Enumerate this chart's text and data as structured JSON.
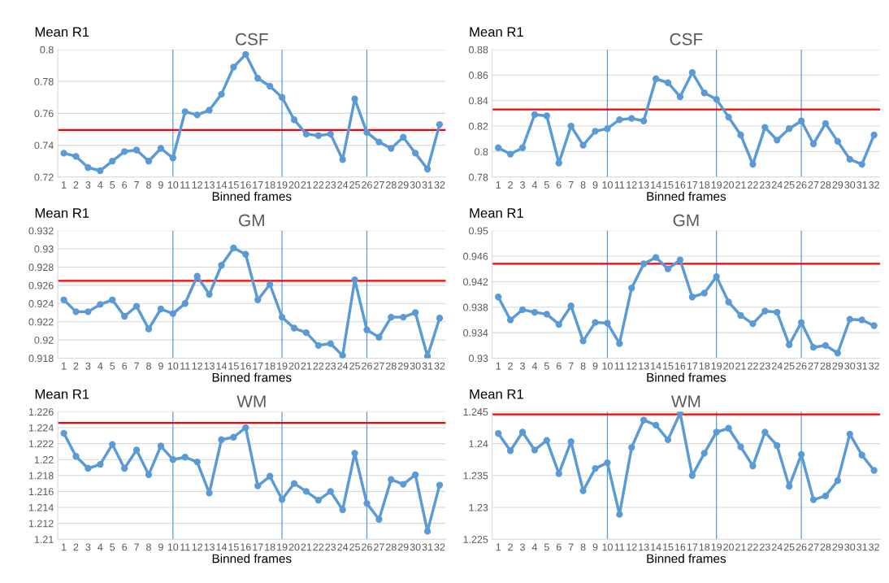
{
  "chart_data": [
    {
      "type": "line",
      "title": "CSF",
      "ylabel": "Mean R1",
      "xlabel": "Binned frames",
      "categories": [
        "1",
        "2",
        "3",
        "4",
        "5",
        "6",
        "7",
        "8",
        "9",
        "10",
        "11",
        "12",
        "13",
        "14",
        "15",
        "16",
        "17",
        "18",
        "19",
        "20",
        "21",
        "22",
        "23",
        "24",
        "25",
        "26",
        "27",
        "28",
        "29",
        "30",
        "31",
        "32"
      ],
      "series": [
        {
          "color": "#5b9bd5",
          "values": [
            0.735,
            0.733,
            0.726,
            0.724,
            0.73,
            0.736,
            0.737,
            0.73,
            0.738,
            0.732,
            0.761,
            0.759,
            0.762,
            0.772,
            0.789,
            0.797,
            0.782,
            0.777,
            0.77,
            0.756,
            0.747,
            0.746,
            0.747,
            0.731,
            0.769,
            0.748,
            0.742,
            0.738,
            0.745,
            0.735,
            0.725,
            0.753
          ]
        }
      ],
      "ylim": [
        0.72,
        0.8
      ],
      "yticks": [
        0.72,
        0.74,
        0.76,
        0.78,
        0.8
      ],
      "grid": "y",
      "marker": "circle",
      "line_style": "solid",
      "ref_lines": [
        {
          "axis": "y",
          "value": 0.7495,
          "color": "#ff0000"
        },
        {
          "axis": "x",
          "value": "10",
          "color": "#5b9bd5"
        },
        {
          "axis": "x",
          "value": "19",
          "color": "#5b9bd5"
        },
        {
          "axis": "x",
          "value": "26",
          "color": "#5b9bd5"
        }
      ]
    },
    {
      "type": "line",
      "title": "CSF",
      "ylabel": "Mean R1",
      "xlabel": "Binned frames",
      "categories": [
        "1",
        "2",
        "3",
        "4",
        "5",
        "6",
        "7",
        "8",
        "9",
        "10",
        "11",
        "12",
        "13",
        "14",
        "15",
        "16",
        "17",
        "18",
        "19",
        "20",
        "21",
        "22",
        "23",
        "24",
        "25",
        "26",
        "27",
        "28",
        "29",
        "30",
        "31",
        "32"
      ],
      "series": [
        {
          "color": "#5b9bd5",
          "values": [
            0.803,
            0.798,
            0.803,
            0.829,
            0.828,
            0.791,
            0.82,
            0.805,
            0.816,
            0.818,
            0.825,
            0.826,
            0.824,
            0.857,
            0.854,
            0.843,
            0.862,
            0.846,
            0.841,
            0.827,
            0.813,
            0.79,
            0.819,
            0.809,
            0.818,
            0.824,
            0.806,
            0.822,
            0.808,
            0.794,
            0.79,
            0.813
          ]
        }
      ],
      "ylim": [
        0.78,
        0.88
      ],
      "yticks": [
        0.78,
        0.8,
        0.82,
        0.84,
        0.86,
        0.88
      ],
      "grid": "y",
      "marker": "circle",
      "line_style": "solid",
      "ref_lines": [
        {
          "axis": "y",
          "value": 0.833,
          "color": "#ff0000"
        },
        {
          "axis": "x",
          "value": "10",
          "color": "#5b9bd5"
        },
        {
          "axis": "x",
          "value": "19",
          "color": "#5b9bd5"
        },
        {
          "axis": "x",
          "value": "26",
          "color": "#5b9bd5"
        }
      ]
    },
    {
      "type": "line",
      "title": "GM",
      "ylabel": "Mean R1",
      "xlabel": "Binned frames",
      "categories": [
        "1",
        "2",
        "3",
        "4",
        "5",
        "6",
        "7",
        "8",
        "9",
        "10",
        "11",
        "12",
        "13",
        "14",
        "15",
        "16",
        "17",
        "18",
        "19",
        "20",
        "21",
        "22",
        "23",
        "24",
        "25",
        "26",
        "27",
        "28",
        "29",
        "30",
        "31",
        "32"
      ],
      "series": [
        {
          "color": "#5b9bd5",
          "values": [
            0.9244,
            0.9231,
            0.9231,
            0.9239,
            0.9244,
            0.9226,
            0.9237,
            0.9212,
            0.9234,
            0.9229,
            0.924,
            0.927,
            0.925,
            0.9282,
            0.9301,
            0.9294,
            0.9244,
            0.9261,
            0.9225,
            0.9213,
            0.9208,
            0.9194,
            0.9196,
            0.9183,
            0.9266,
            0.9211,
            0.9203,
            0.9225,
            0.9225,
            0.923,
            0.9182,
            0.9224
          ]
        }
      ],
      "ylim": [
        0.918,
        0.932
      ],
      "yticks": [
        0.918,
        0.92,
        0.922,
        0.924,
        0.926,
        0.928,
        0.93,
        0.932
      ],
      "grid": "y",
      "marker": "circle",
      "line_style": "solid",
      "ref_lines": [
        {
          "axis": "y",
          "value": 0.9265,
          "color": "#ff0000"
        },
        {
          "axis": "x",
          "value": "10",
          "color": "#5b9bd5"
        },
        {
          "axis": "x",
          "value": "19",
          "color": "#5b9bd5"
        },
        {
          "axis": "x",
          "value": "26",
          "color": "#5b9bd5"
        }
      ]
    },
    {
      "type": "line",
      "title": "GM",
      "ylabel": "Mean R1",
      "xlabel": "Binned frames",
      "categories": [
        "1",
        "2",
        "3",
        "4",
        "5",
        "6",
        "7",
        "8",
        "9",
        "10",
        "11",
        "12",
        "13",
        "14",
        "15",
        "16",
        "17",
        "18",
        "19",
        "20",
        "21",
        "22",
        "23",
        "24",
        "25",
        "26",
        "27",
        "28",
        "29",
        "30",
        "31",
        "32"
      ],
      "series": [
        {
          "color": "#5b9bd5",
          "values": [
            0.9396,
            0.936,
            0.9376,
            0.9372,
            0.9369,
            0.9353,
            0.9382,
            0.9327,
            0.9356,
            0.9355,
            0.9323,
            0.941,
            0.9448,
            0.9458,
            0.944,
            0.9454,
            0.9396,
            0.9402,
            0.9428,
            0.9388,
            0.9367,
            0.9354,
            0.9374,
            0.9372,
            0.9321,
            0.9356,
            0.9317,
            0.932,
            0.9308,
            0.9361,
            0.936,
            0.9351
          ]
        }
      ],
      "ylim": [
        0.93,
        0.95
      ],
      "yticks": [
        0.93,
        0.934,
        0.938,
        0.942,
        0.946,
        0.95
      ],
      "grid": "y",
      "marker": "circle",
      "line_style": "solid",
      "ref_lines": [
        {
          "axis": "y",
          "value": 0.9448,
          "color": "#ff0000"
        },
        {
          "axis": "x",
          "value": "10",
          "color": "#5b9bd5"
        },
        {
          "axis": "x",
          "value": "19",
          "color": "#5b9bd5"
        },
        {
          "axis": "x",
          "value": "26",
          "color": "#5b9bd5"
        }
      ]
    },
    {
      "type": "line",
      "title": "WM",
      "ylabel": "Mean R1",
      "xlabel": "Binned frames",
      "categories": [
        "1",
        "2",
        "3",
        "4",
        "5",
        "6",
        "7",
        "8",
        "9",
        "10",
        "11",
        "12",
        "13",
        "14",
        "15",
        "16",
        "17",
        "18",
        "19",
        "20",
        "21",
        "22",
        "23",
        "24",
        "25",
        "26",
        "27",
        "28",
        "29",
        "30",
        "31",
        "32"
      ],
      "series": [
        {
          "color": "#5b9bd5",
          "values": [
            1.2233,
            1.2204,
            1.2189,
            1.2194,
            1.2219,
            1.2189,
            1.2212,
            1.2181,
            1.2217,
            1.22,
            1.2203,
            1.2197,
            1.2158,
            1.2225,
            1.2228,
            1.224,
            1.2167,
            1.2179,
            1.215,
            1.217,
            1.216,
            1.2149,
            1.216,
            1.2137,
            1.2208,
            1.2145,
            1.2125,
            1.2175,
            1.2169,
            1.2181,
            1.211,
            1.2168
          ]
        }
      ],
      "ylim": [
        1.21,
        1.226
      ],
      "yticks": [
        1.21,
        1.212,
        1.214,
        1.216,
        1.218,
        1.22,
        1.222,
        1.224,
        1.226
      ],
      "grid": "y",
      "marker": "circle",
      "line_style": "solid",
      "ref_lines": [
        {
          "axis": "y",
          "value": 1.2246,
          "color": "#ff0000"
        },
        {
          "axis": "x",
          "value": "10",
          "color": "#5b9bd5"
        },
        {
          "axis": "x",
          "value": "19",
          "color": "#5b9bd5"
        },
        {
          "axis": "x",
          "value": "26",
          "color": "#5b9bd5"
        }
      ]
    },
    {
      "type": "line",
      "title": "WM",
      "ylabel": "Mean R1",
      "xlabel": "Binned frames",
      "categories": [
        "1",
        "2",
        "3",
        "4",
        "5",
        "6",
        "7",
        "8",
        "9",
        "10",
        "11",
        "12",
        "13",
        "14",
        "15",
        "16",
        "17",
        "18",
        "19",
        "20",
        "21",
        "22",
        "23",
        "24",
        "25",
        "26",
        "27",
        "28",
        "29",
        "30",
        "31",
        "32"
      ],
      "series": [
        {
          "color": "#5b9bd5",
          "values": [
            1.2416,
            1.2389,
            1.2418,
            1.239,
            1.2405,
            1.2353,
            1.2403,
            1.2326,
            1.2361,
            1.237,
            1.2289,
            1.2394,
            1.2437,
            1.2429,
            1.2406,
            1.2448,
            1.235,
            1.2385,
            1.2418,
            1.2424,
            1.2395,
            1.2365,
            1.2418,
            1.2397,
            1.2333,
            1.2383,
            1.2312,
            1.2318,
            1.2342,
            1.2415,
            1.2382,
            1.2358
          ]
        }
      ],
      "ylim": [
        1.225,
        1.245
      ],
      "yticks": [
        1.225,
        1.23,
        1.235,
        1.24,
        1.245
      ],
      "grid": "y",
      "marker": "circle",
      "line_style": "solid",
      "ref_lines": [
        {
          "axis": "y",
          "value": 1.2446,
          "color": "#ff0000"
        },
        {
          "axis": "x",
          "value": "10",
          "color": "#5b9bd5"
        },
        {
          "axis": "x",
          "value": "19",
          "color": "#5b9bd5"
        },
        {
          "axis": "x",
          "value": "26",
          "color": "#5b9bd5"
        }
      ]
    }
  ]
}
